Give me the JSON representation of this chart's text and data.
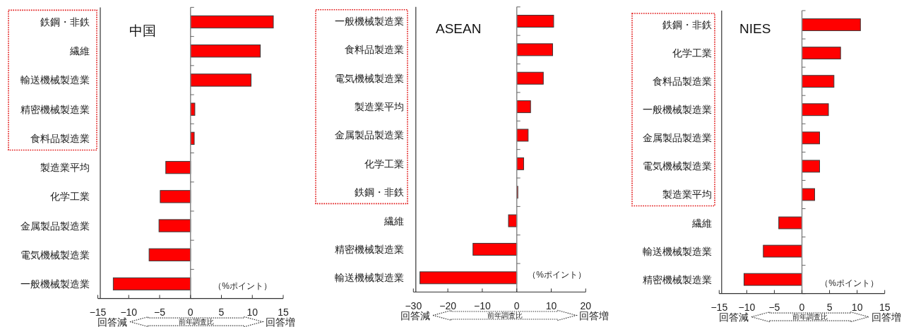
{
  "chart_data": [
    {
      "type": "bar",
      "orientation": "horizontal",
      "title": "中国",
      "categories": [
        "鉄鋼・非鉄",
        "繊維",
        "輸送機械製造業",
        "精密機械製造業",
        "食料品製造業",
        "製造業平均",
        "化学工業",
        "金属製品製造業",
        "電気機械製造業",
        "一般機械製造業"
      ],
      "values": [
        13.4,
        11.3,
        9.8,
        0.7,
        0.6,
        -4.0,
        -4.9,
        -5.1,
        -6.7,
        -12.5
      ],
      "color": "#ff0000",
      "xlim": [
        -15,
        15
      ],
      "xticks": [
        -15,
        -10,
        -5,
        0,
        5,
        10,
        15
      ],
      "xlabel": "（%ポイント）",
      "annotations": [
        "回答減",
        "前年調査比",
        "回答増"
      ]
    },
    {
      "type": "bar",
      "orientation": "horizontal",
      "title": "ASEAN",
      "categories": [
        "一般機械製造業",
        "食料品製造業",
        "電気機械製造業",
        "製造業平均",
        "金属製品製造業",
        "化学工業",
        "鉄鋼・非鉄",
        "繊維",
        "精密機械製造業",
        "輸送機械製造業"
      ],
      "values": [
        10.7,
        10.4,
        7.7,
        4.0,
        3.3,
        2.0,
        0.3,
        -2.4,
        -12.7,
        -28.1
      ],
      "color": "#ff0000",
      "xlim": [
        -30,
        20
      ],
      "xticks": [
        -30,
        -20,
        -10,
        0,
        10,
        20
      ],
      "xlabel": "（%ポイント）",
      "annotations": [
        "回答減",
        "前年調査比",
        "回答増"
      ]
    },
    {
      "type": "bar",
      "orientation": "horizontal",
      "title": "NIES",
      "categories": [
        "鉄鋼・非鉄",
        "化学工業",
        "食料品製造業",
        "一般機械製造業",
        "金属製品製造業",
        "電気機械製造業",
        "製造業平均",
        "繊維",
        "輸送機械製造業",
        "精密機械製造業"
      ],
      "values": [
        10.6,
        7.0,
        5.8,
        4.8,
        3.2,
        3.2,
        2.3,
        -4.2,
        -7.0,
        -10.5
      ],
      "color": "#ff0000",
      "xlim": [
        -15,
        15
      ],
      "xticks": [
        -15,
        -10,
        -5,
        0,
        5,
        10,
        15
      ],
      "xlabel": "（%ポイント）",
      "annotations": [
        "回答減",
        "前年調査比",
        "回答増"
      ]
    }
  ]
}
